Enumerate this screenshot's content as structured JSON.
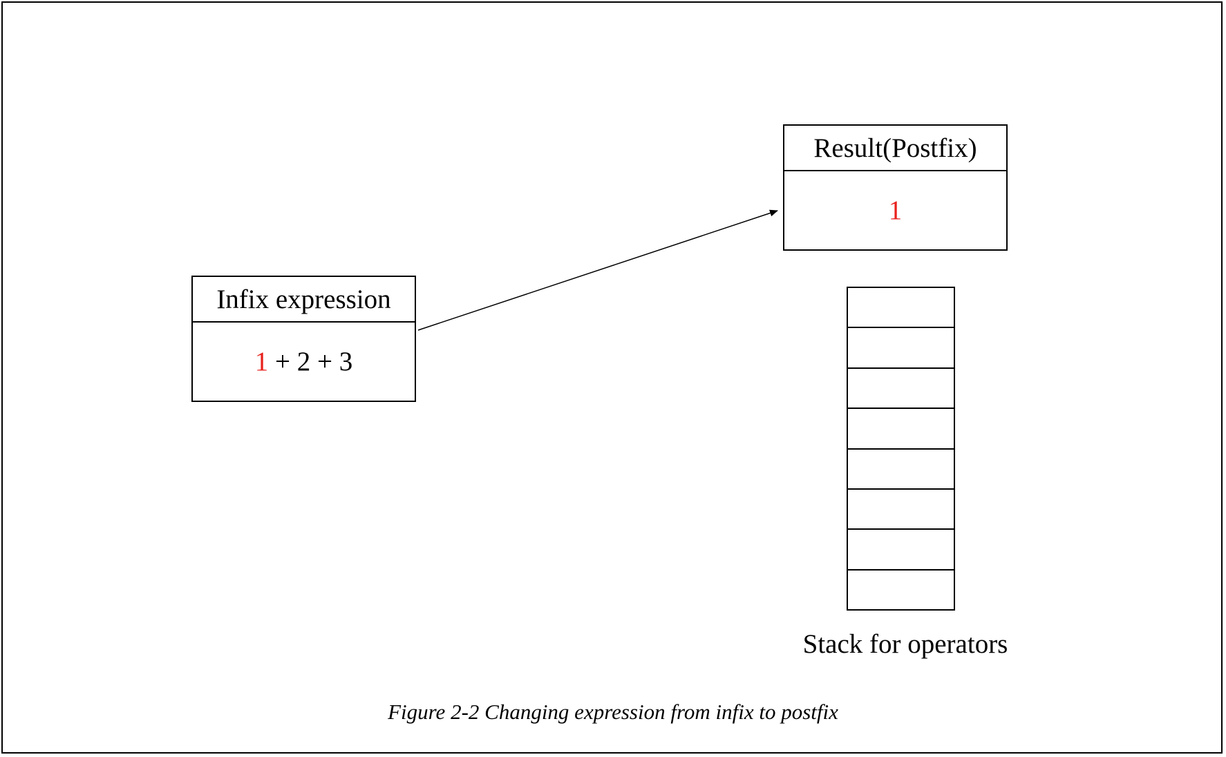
{
  "figure": {
    "caption": "Figure 2-2 Changing expression from infix to postfix"
  },
  "infix": {
    "title": "Infix expression",
    "highlight_token": "1",
    "rest": " + 2 + 3"
  },
  "result": {
    "title": "Result(Postfix)",
    "value": "1"
  },
  "stack": {
    "label": "Stack for operators",
    "cells": [
      "",
      "",
      "",
      "",
      "",
      "",
      "",
      ""
    ]
  },
  "colors": {
    "highlight": "#e8211c",
    "line": "#000000"
  },
  "arrow": {
    "from": "infix-box",
    "to": "result-box"
  }
}
